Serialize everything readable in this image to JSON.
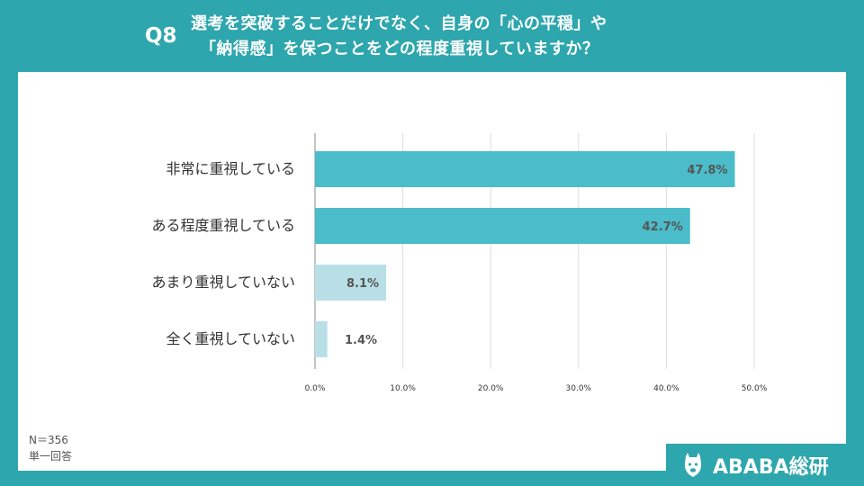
{
  "header": {
    "question_number": "Q8",
    "question_line1": "選考を突破することだけでなく、自身の「心の平穏」や",
    "question_line2": "「納得感」を保つことをどの程度重視していますか？"
  },
  "notes": {
    "sample_size": "N＝356",
    "answer_type": "単一回答"
  },
  "brand": {
    "name": "ABABA総研",
    "logo_icon": "alpaca-icon"
  },
  "colors": {
    "background": "#2ea6ad",
    "bar_strong": "#4bbcc9",
    "bar_light": "#b9dfe6",
    "grid": "#dddddd"
  },
  "chart_data": {
    "type": "bar",
    "orientation": "horizontal",
    "categories": [
      "非常に重視している",
      "ある程度重視している",
      "あまり重視していない",
      "全く重視していない"
    ],
    "values": [
      47.8,
      42.7,
      8.1,
      1.4
    ],
    "value_labels": [
      "47.8%",
      "42.7%",
      "8.1%",
      "1.4%"
    ],
    "xlim": [
      0,
      50
    ],
    "xticks": [
      0,
      10,
      20,
      30,
      40,
      50
    ],
    "xtick_labels": [
      "0.0%",
      "10.0%",
      "20.0%",
      "30.0%",
      "40.0%",
      "50.0%"
    ],
    "grid": true,
    "title": "",
    "xlabel": "",
    "ylabel": ""
  }
}
